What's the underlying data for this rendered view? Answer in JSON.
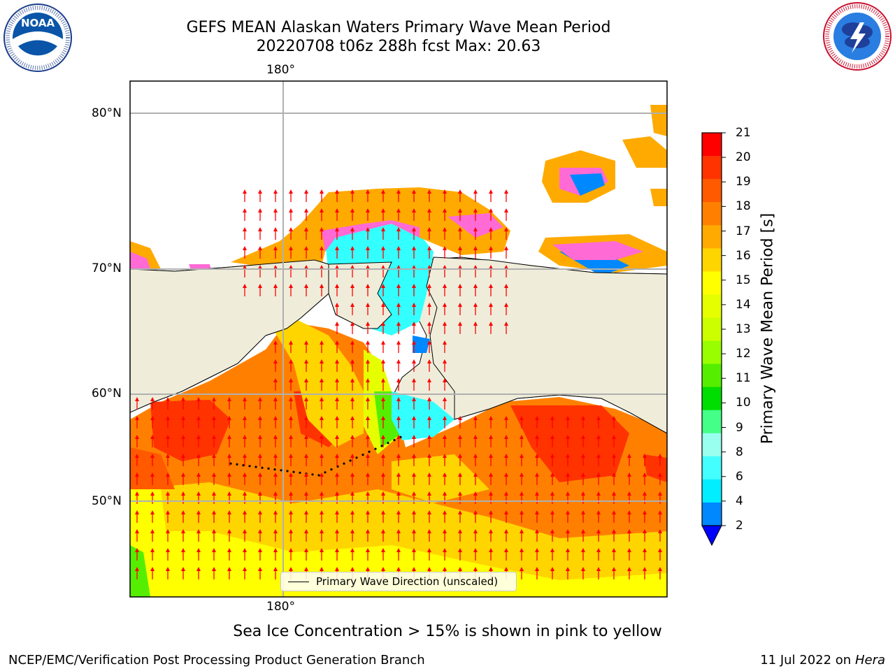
{
  "title": {
    "line1": "GEFS MEAN Alaskan Waters Primary Wave Mean Period",
    "line2": "20220708 t06z 288h fcst   Max: 20.63"
  },
  "logos": {
    "noaa": {
      "text": "NOAA",
      "ring_text": "NATIONAL OCEANIC AND ATMOSPHERIC ADMINISTRATION · U.S. DEPARTMENT OF COMMERCE"
    },
    "nws": {
      "ring_text": "NATIONAL WEATHER SERVICE"
    }
  },
  "map": {
    "lon_label_top": "180°",
    "lon_label_bottom": "180°",
    "lat_labels": [
      "80°N",
      "70°N",
      "60°N",
      "50°N"
    ],
    "legend": "Primary Wave Direction (unscaled)",
    "colors": {
      "land": "#efedda",
      "arrow": "#ff0000",
      "grid": "#b0b0b0",
      "ice": "#ff6ad5"
    }
  },
  "colorbar": {
    "label": "Primary Wave Mean Period [s]",
    "ticks": [
      "21",
      "20",
      "19",
      "18",
      "17",
      "16",
      "15",
      "14",
      "13",
      "12",
      "11",
      "10",
      "9",
      "8",
      "6",
      "4",
      "2"
    ],
    "colors": [
      "#ff0000",
      "#ff3300",
      "#ff5a00",
      "#ff8000",
      "#ffaa00",
      "#ffd500",
      "#ffff00",
      "#e6ff00",
      "#ccff00",
      "#99ff00",
      "#55ee00",
      "#00dd00",
      "#44ff88",
      "#99ffee",
      "#44ffff",
      "#00eeff",
      "#0088ff",
      "#0000ff"
    ],
    "extend_min": true
  },
  "notes": {
    "ice": "Sea Ice Concentration > 15% is shown in pink to yellow",
    "footer_left": "NCEP/EMC/Verification Post Processing Product Generation Branch",
    "footer_right_date": "11 Jul 2022 on ",
    "footer_right_host": "Hera"
  }
}
